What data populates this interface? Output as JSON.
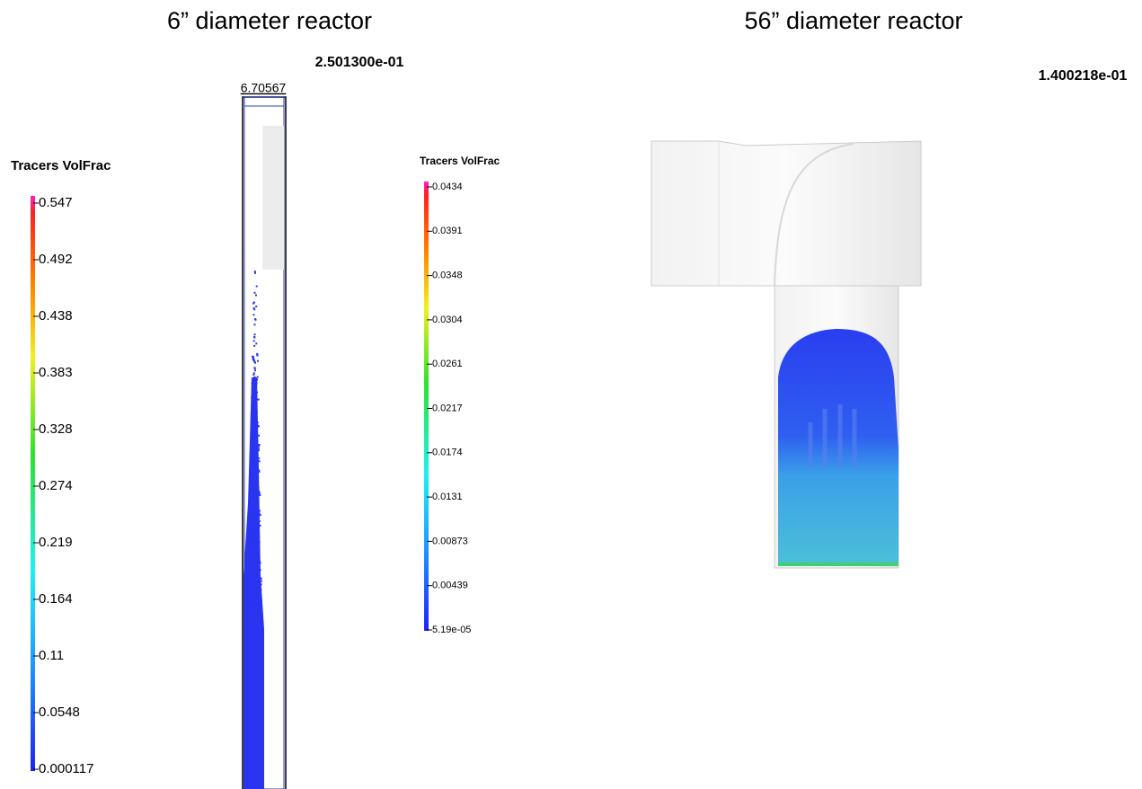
{
  "left_panel": {
    "title": "6” diameter reactor",
    "time": "2.501300e-01",
    "scale_label": "6.70567",
    "colorbar": {
      "title": "Tracers VolFrac",
      "ticks": [
        "0.547",
        "0.492",
        "0.438",
        "0.383",
        "0.328",
        "0.274",
        "0.219",
        "0.164",
        " 0.11",
        "0.0548",
        "0.000117"
      ]
    }
  },
  "right_panel": {
    "title": "56” diameter reactor",
    "time": "1.400218e-01",
    "colorbar": {
      "title": "Tracers VolFrac",
      "ticks": [
        "0.0434",
        "0.0391",
        "0.0348",
        "0.0304",
        "0.0261",
        "0.0217",
        "0.0174",
        "0.0131",
        "0.00873",
        "0.00439",
        "5.19e-05"
      ]
    }
  }
}
